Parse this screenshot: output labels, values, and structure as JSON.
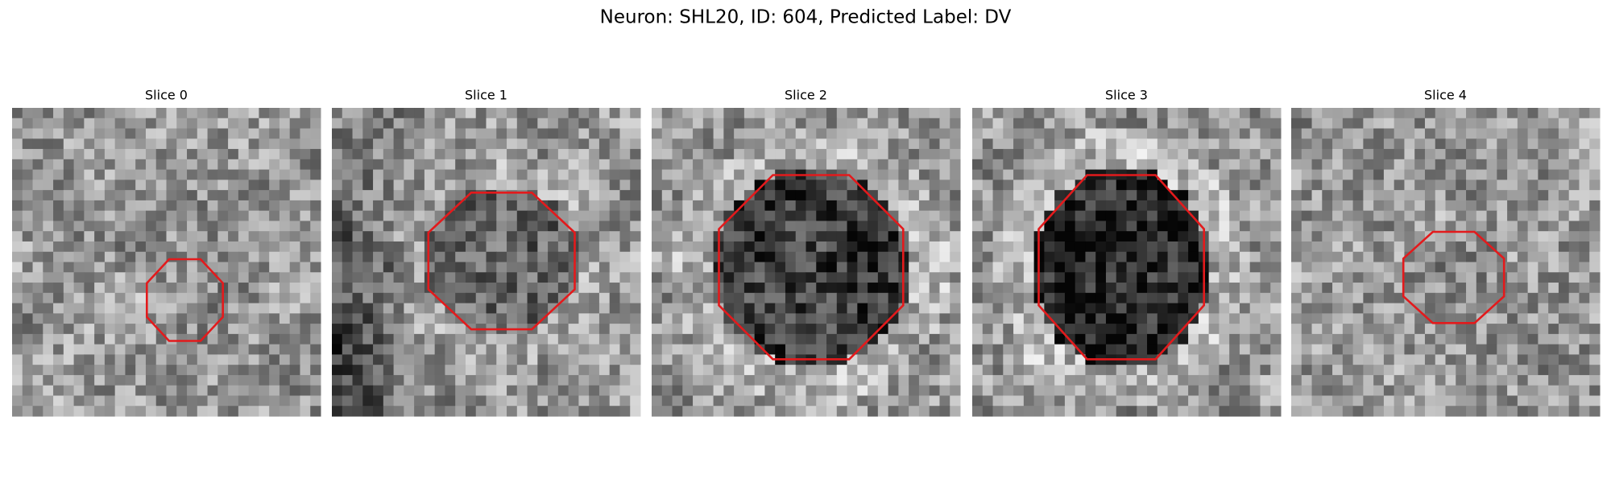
{
  "title": "Neuron: SHL20, ID: 604, Predicted Label: DV",
  "panels": [
    {
      "title": "Slice 0"
    },
    {
      "title": "Slice 1"
    },
    {
      "title": "Slice 2"
    },
    {
      "title": "Slice 3"
    },
    {
      "title": "Slice 4"
    }
  ]
}
